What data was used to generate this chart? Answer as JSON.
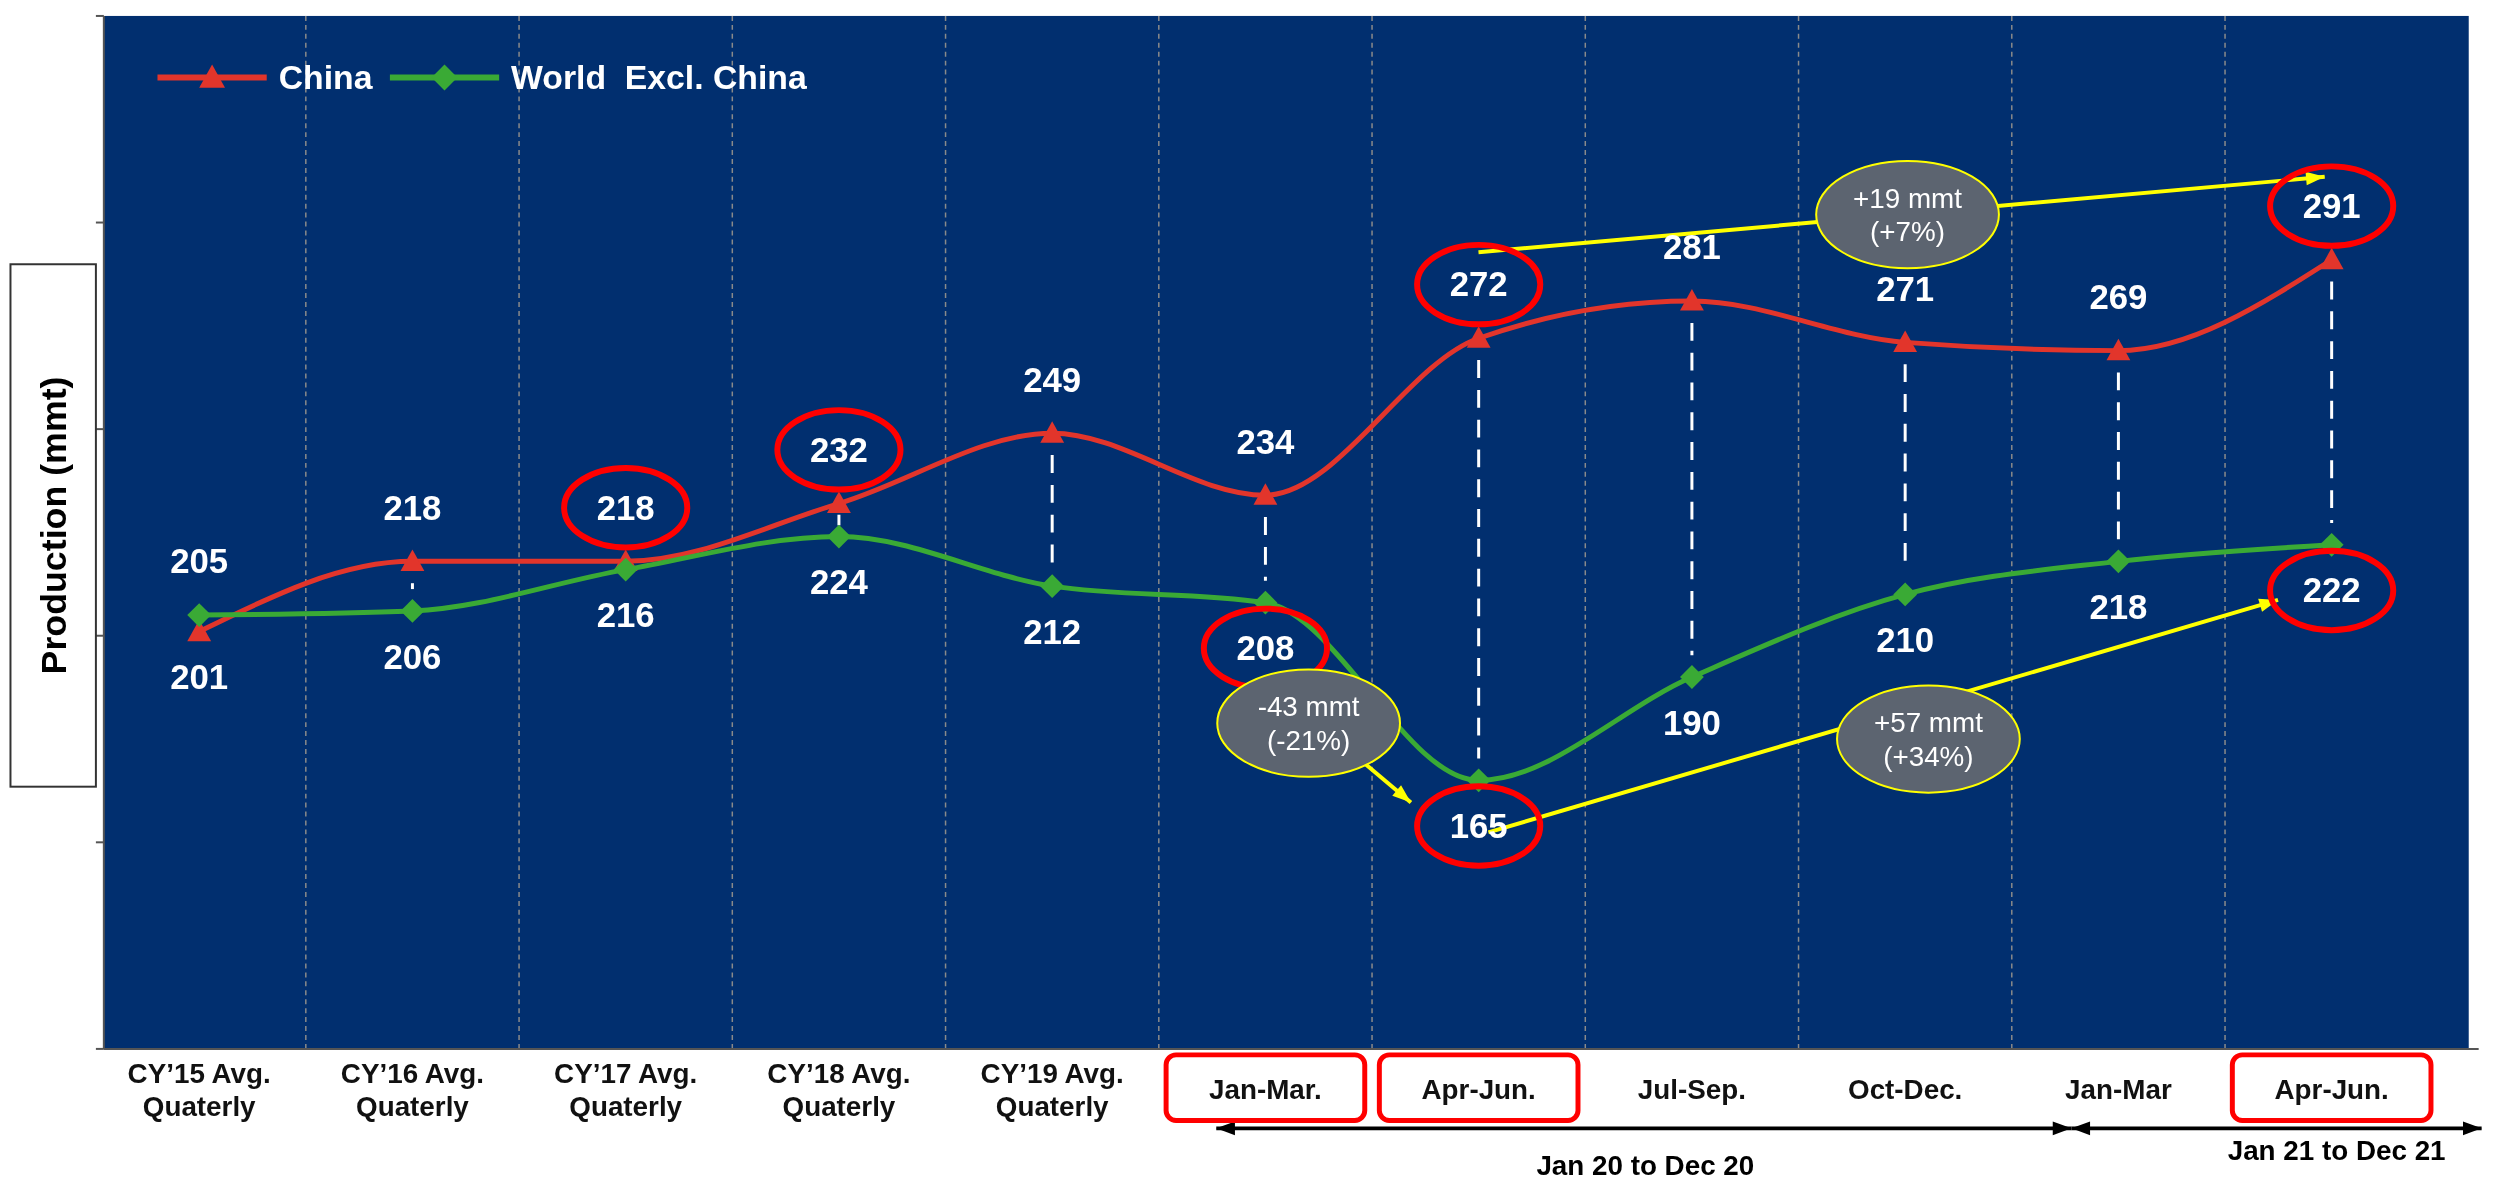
{
  "chart_data": {
    "type": "line",
    "ylabel": "Production (mmt)",
    "categories": [
      "CY’15 Avg.\nQuaterly",
      "CY’16 Avg.\nQuaterly",
      "CY’17 Avg.\nQuaterly",
      "CY’18 Avg.\nQuaterly",
      "CY’19 Avg.\nQuaterly",
      "Jan-Mar.",
      "Apr-Jun.",
      "Jul-Sep.",
      "Oct-Dec.",
      "Jan-Mar",
      "Apr-Jun."
    ],
    "series": [
      {
        "name": "China",
        "color": "#e2352b",
        "marker": "triangle",
        "values": [
          201,
          218,
          218,
          232,
          249,
          234,
          272,
          281,
          271,
          269,
          291
        ]
      },
      {
        "name": "World  Excl. China",
        "color": "#3aaa35",
        "marker": "diamond",
        "values": [
          205,
          206,
          216,
          224,
          212,
          208,
          165,
          190,
          210,
          218,
          222
        ]
      }
    ],
    "ylim": [
      100,
      350
    ],
    "yticks": [
      {
        "value": 100,
        "label": null
      },
      {
        "value": 150,
        "label": null
      },
      {
        "value": 200,
        "label": null
      },
      {
        "value": 250,
        "label": null
      },
      {
        "value": 300,
        "label": null
      },
      {
        "value": 350,
        "label": null
      }
    ],
    "tick_labels": "x",
    "data_labels": true,
    "legend": "top left",
    "annotations": [
      "+19 mmt\n(+7%)",
      "-43 mmt\n(-21%)",
      "+57 mmt\n(+34%)",
      "Jan 20 to Dec 20",
      "Jan 21 to Dec 21"
    ]
  }
}
